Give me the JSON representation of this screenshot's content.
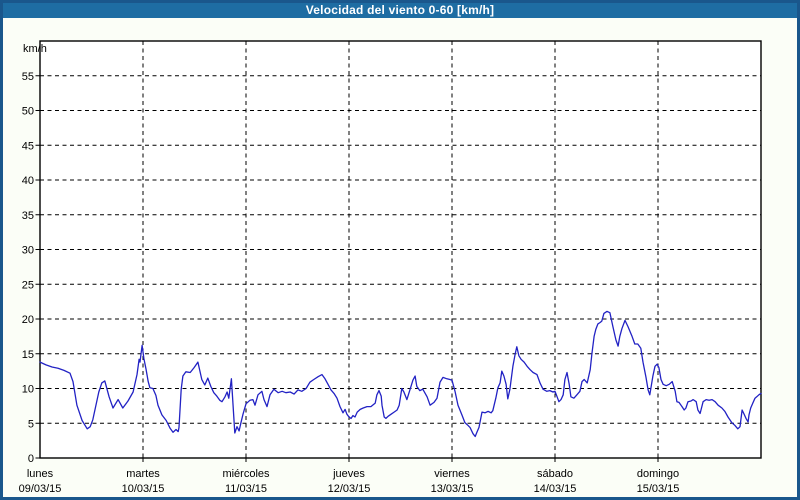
{
  "window": {
    "title": "Velocidad del viento 0-60 [km/h]"
  },
  "colors": {
    "titlebar_bg": "#1e6da3",
    "frame_border": "#1a578c",
    "page_bg": "#fbfef7",
    "plot_bg": "#ffffff",
    "line": "#2222c4",
    "grid": "#000000",
    "text": "#000000"
  },
  "chart_data": {
    "type": "line",
    "title": "Velocidad del viento 0-60 [km/h]",
    "unit_label": "km/h",
    "ylabel": "km/h",
    "ylim": [
      0,
      60
    ],
    "y_ticks": [
      0,
      5,
      10,
      15,
      20,
      25,
      30,
      35,
      40,
      45,
      50,
      55
    ],
    "grid": "dashed",
    "legend": "none",
    "x_hours_total": 168,
    "x_days": [
      {
        "name": "lunes",
        "date": "09/03/15"
      },
      {
        "name": "martes",
        "date": "10/03/15"
      },
      {
        "name": "miércoles",
        "date": "11/03/15"
      },
      {
        "name": "jueves",
        "date": "12/03/15"
      },
      {
        "name": "viernes",
        "date": "13/03/15"
      },
      {
        "name": "sábado",
        "date": "14/03/15"
      },
      {
        "name": "domingo",
        "date": "15/03/15"
      }
    ],
    "series": [
      {
        "name": "Velocidad del viento",
        "unit": "km/h",
        "points": [
          [
            0,
            13.8
          ],
          [
            1.4,
            13.4
          ],
          [
            2.8,
            13.1
          ],
          [
            4.2,
            12.9
          ],
          [
            5.6,
            12.6
          ],
          [
            7,
            12.2
          ],
          [
            7.7,
            11
          ],
          [
            8.6,
            7.6
          ],
          [
            9.8,
            5.4
          ],
          [
            11,
            4.2
          ],
          [
            11.7,
            4.5
          ],
          [
            12.3,
            5.5
          ],
          [
            13,
            7.5
          ],
          [
            13.7,
            9.5
          ],
          [
            14.4,
            10.8
          ],
          [
            15.1,
            11.1
          ],
          [
            16.1,
            8.8
          ],
          [
            17,
            7.2
          ],
          [
            18.2,
            8.4
          ],
          [
            19.3,
            7.2
          ],
          [
            20.5,
            8.2
          ],
          [
            21.7,
            9.5
          ],
          [
            22.6,
            12
          ],
          [
            23.1,
            14.2
          ],
          [
            23.3,
            13.8
          ],
          [
            23.8,
            16.2
          ],
          [
            24.2,
            14.3
          ],
          [
            24.7,
            12.8
          ],
          [
            25.2,
            11
          ],
          [
            25.6,
            10.1
          ],
          [
            26.3,
            10
          ],
          [
            27,
            9
          ],
          [
            27.5,
            7.6
          ],
          [
            28.4,
            6.2
          ],
          [
            29.4,
            5.4
          ],
          [
            30.3,
            4.3
          ],
          [
            31,
            3.7
          ],
          [
            31.7,
            4.1
          ],
          [
            32.2,
            3.8
          ],
          [
            32.4,
            4.4
          ],
          [
            32.9,
            9.9
          ],
          [
            33.3,
            11.8
          ],
          [
            34,
            12.4
          ],
          [
            35,
            12.3
          ],
          [
            35.9,
            13
          ],
          [
            36.8,
            13.8
          ],
          [
            37.7,
            11.3
          ],
          [
            38.4,
            10.5
          ],
          [
            39.1,
            11.5
          ],
          [
            39.8,
            10.3
          ],
          [
            40.5,
            9.4
          ],
          [
            41.2,
            8.9
          ],
          [
            41.9,
            8.3
          ],
          [
            42.4,
            8.1
          ],
          [
            43.1,
            8.8
          ],
          [
            43.6,
            9.5
          ],
          [
            44,
            8.6
          ],
          [
            44.6,
            11.4
          ],
          [
            45.4,
            3.6
          ],
          [
            45.9,
            4.5
          ],
          [
            46.4,
            3.9
          ],
          [
            46.8,
            5
          ],
          [
            47.3,
            6.3
          ],
          [
            48,
            7.8
          ],
          [
            48.9,
            8.3
          ],
          [
            49.6,
            8.4
          ],
          [
            50.1,
            7.6
          ],
          [
            50.8,
            9.1
          ],
          [
            51.7,
            9.6
          ],
          [
            52.2,
            8.4
          ],
          [
            52.9,
            7.4
          ],
          [
            53.6,
            9.1
          ],
          [
            54.5,
            9.9
          ],
          [
            55.5,
            9.4
          ],
          [
            56.4,
            9.6
          ],
          [
            57.3,
            9.4
          ],
          [
            58.3,
            9.5
          ],
          [
            59.2,
            9.2
          ],
          [
            60.1,
            9.8
          ],
          [
            61,
            9.6
          ],
          [
            62,
            10
          ],
          [
            62.9,
            10.9
          ],
          [
            63.8,
            11.3
          ],
          [
            64.8,
            11.7
          ],
          [
            65.7,
            12
          ],
          [
            66.4,
            11.4
          ],
          [
            67.1,
            10.6
          ],
          [
            67.8,
            9.8
          ],
          [
            68.5,
            9.3
          ],
          [
            69.2,
            8.6
          ],
          [
            69.9,
            7.4
          ],
          [
            70.6,
            6.5
          ],
          [
            71.1,
            7
          ],
          [
            71.5,
            6.3
          ],
          [
            72,
            5.9
          ],
          [
            72.5,
            5.7
          ],
          [
            72.9,
            6.1
          ],
          [
            73.4,
            5.9
          ],
          [
            73.9,
            6.6
          ],
          [
            74.6,
            7
          ],
          [
            75.3,
            7.2
          ],
          [
            76.2,
            7.4
          ],
          [
            77.1,
            7.4
          ],
          [
            78.1,
            7.9
          ],
          [
            78.5,
            9.1
          ],
          [
            79,
            9.7
          ],
          [
            79.5,
            8.9
          ],
          [
            79.7,
            7.6
          ],
          [
            80.2,
            5.9
          ],
          [
            80.6,
            5.7
          ],
          [
            81.1,
            6
          ],
          [
            81.8,
            6.3
          ],
          [
            82.5,
            6.6
          ],
          [
            83.2,
            6.9
          ],
          [
            83.7,
            7.6
          ],
          [
            84.3,
            10
          ],
          [
            84.8,
            9.5
          ],
          [
            85.5,
            8.4
          ],
          [
            86.2,
            9.8
          ],
          [
            86.9,
            11.2
          ],
          [
            87.4,
            11.8
          ],
          [
            87.8,
            10.3
          ],
          [
            88.5,
            9.7
          ],
          [
            89.2,
            9.9
          ],
          [
            90.2,
            8.8
          ],
          [
            90.9,
            7.6
          ],
          [
            91.8,
            8
          ],
          [
            92.5,
            8.6
          ],
          [
            93.2,
            10.9
          ],
          [
            93.9,
            11.6
          ],
          [
            94.8,
            11.4
          ],
          [
            95.5,
            11.3
          ],
          [
            96,
            11.2
          ],
          [
            96.7,
            9.6
          ],
          [
            97.4,
            7.6
          ],
          [
            98.3,
            6.2
          ],
          [
            99,
            5.1
          ],
          [
            99.7,
            4.7
          ],
          [
            100.2,
            4.4
          ],
          [
            100.9,
            3.5
          ],
          [
            101.4,
            3.1
          ],
          [
            101.8,
            3.7
          ],
          [
            102.3,
            4.4
          ],
          [
            103,
            6.6
          ],
          [
            103.7,
            6.5
          ],
          [
            104.4,
            6.7
          ],
          [
            105.1,
            6.5
          ],
          [
            105.5,
            6.8
          ],
          [
            106.2,
            8.6
          ],
          [
            106.7,
            10.1
          ],
          [
            107.2,
            10.8
          ],
          [
            107.6,
            12.5
          ],
          [
            108.1,
            11.8
          ],
          [
            108.6,
            10.6
          ],
          [
            109,
            8.5
          ],
          [
            109.5,
            9.9
          ],
          [
            110.2,
            13.2
          ],
          [
            110.7,
            14.9
          ],
          [
            111.1,
            16
          ],
          [
            111.6,
            14.7
          ],
          [
            112.1,
            14.2
          ],
          [
            112.8,
            13.8
          ],
          [
            113.5,
            13.2
          ],
          [
            114.2,
            12.7
          ],
          [
            114.9,
            12.3
          ],
          [
            115.8,
            12
          ],
          [
            116.5,
            10.8
          ],
          [
            117.2,
            9.9
          ],
          [
            118.1,
            9.6
          ],
          [
            118.8,
            9.7
          ],
          [
            119.5,
            9.5
          ],
          [
            120,
            9.6
          ],
          [
            120.5,
            8.8
          ],
          [
            120.9,
            8.1
          ],
          [
            121.4,
            8.4
          ],
          [
            121.9,
            9.1
          ],
          [
            122.3,
            11.3
          ],
          [
            122.8,
            12.3
          ],
          [
            123.3,
            10.6
          ],
          [
            123.7,
            8.8
          ],
          [
            124.4,
            8.6
          ],
          [
            125.1,
            9.1
          ],
          [
            125.8,
            9.6
          ],
          [
            126.3,
            11
          ],
          [
            126.8,
            11.3
          ],
          [
            127.5,
            10.8
          ],
          [
            128.2,
            12.7
          ],
          [
            128.6,
            15
          ],
          [
            129.1,
            17.5
          ],
          [
            129.5,
            18.5
          ],
          [
            130,
            19.3
          ],
          [
            130.5,
            19.5
          ],
          [
            130.9,
            19.7
          ],
          [
            131.4,
            20.8
          ],
          [
            132.1,
            21.1
          ],
          [
            132.8,
            20.9
          ],
          [
            133.5,
            18.9
          ],
          [
            134.2,
            17
          ],
          [
            134.7,
            16.1
          ],
          [
            135.1,
            17.5
          ],
          [
            135.6,
            18.6
          ],
          [
            136.3,
            19.8
          ],
          [
            137,
            18.9
          ],
          [
            137.9,
            17.6
          ],
          [
            138.6,
            16.4
          ],
          [
            139.3,
            16.4
          ],
          [
            140,
            15.8
          ],
          [
            140.5,
            13.8
          ],
          [
            141.2,
            11.6
          ],
          [
            141.7,
            9.8
          ],
          [
            142.1,
            9.1
          ],
          [
            142.8,
            11.8
          ],
          [
            143.3,
            13.2
          ],
          [
            143.8,
            13.5
          ],
          [
            144.2,
            13
          ],
          [
            144.7,
            11.3
          ],
          [
            145.2,
            10.6
          ],
          [
            145.9,
            10.4
          ],
          [
            146.6,
            10.6
          ],
          [
            147.3,
            11
          ],
          [
            148,
            9.6
          ],
          [
            148.4,
            8.1
          ],
          [
            148.9,
            8
          ],
          [
            149.6,
            7.4
          ],
          [
            150.1,
            6.9
          ],
          [
            150.5,
            7.2
          ],
          [
            151,
            8.1
          ],
          [
            151.7,
            8.2
          ],
          [
            152.2,
            8.4
          ],
          [
            152.9,
            8.1
          ],
          [
            153.3,
            6.9
          ],
          [
            153.8,
            6.4
          ],
          [
            154.5,
            8.1
          ],
          [
            155.2,
            8.4
          ],
          [
            155.9,
            8.3
          ],
          [
            156.6,
            8.4
          ],
          [
            157.3,
            8.1
          ],
          [
            158,
            7.6
          ],
          [
            158.9,
            7.2
          ],
          [
            159.6,
            6.7
          ],
          [
            160.3,
            5.9
          ],
          [
            161.2,
            5.1
          ],
          [
            161.9,
            4.7
          ],
          [
            162.6,
            4.2
          ],
          [
            163.1,
            4.5
          ],
          [
            163.6,
            6.9
          ],
          [
            164,
            6.4
          ],
          [
            164.5,
            5.7
          ],
          [
            165,
            5.2
          ],
          [
            165.2,
            6.2
          ],
          [
            165.6,
            7.2
          ],
          [
            166.1,
            7.9
          ],
          [
            166.6,
            8.6
          ],
          [
            167,
            8.8
          ],
          [
            167.5,
            9.1
          ],
          [
            168,
            9.3
          ]
        ]
      }
    ]
  }
}
